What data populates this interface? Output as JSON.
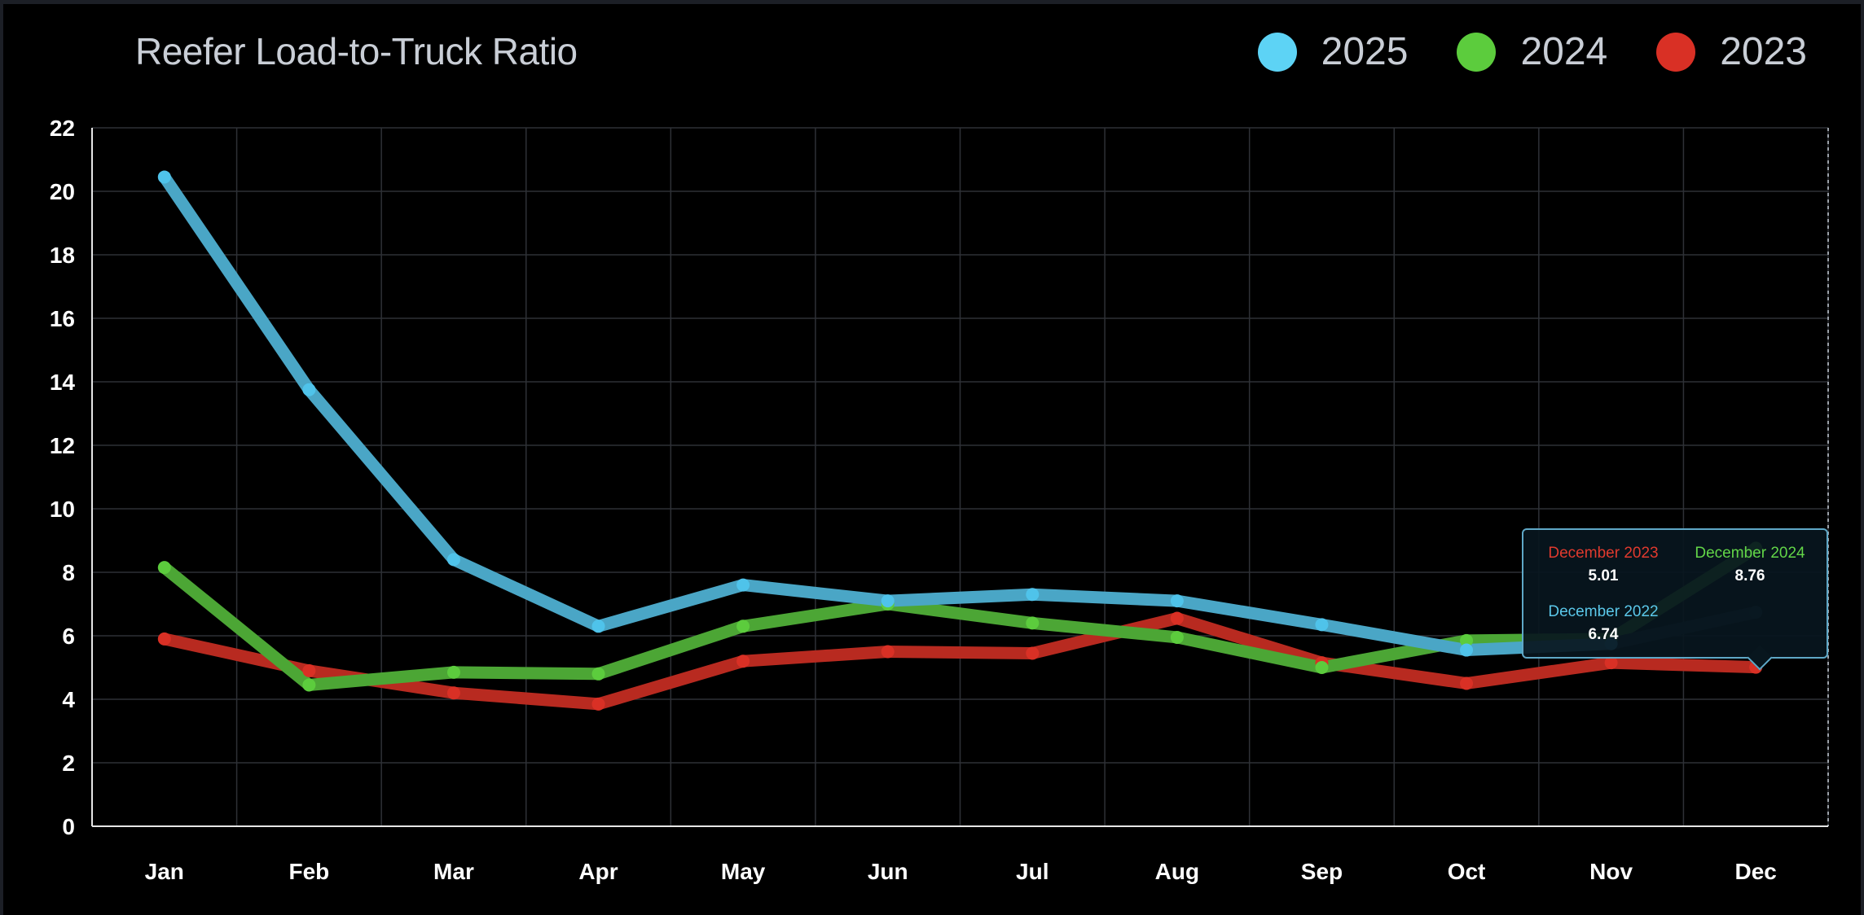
{
  "chart_data": {
    "type": "line",
    "title": "Reefer Load-to-Truck Ratio",
    "xlabel": "",
    "ylabel": "",
    "categories": [
      "Jan",
      "Feb",
      "Mar",
      "Apr",
      "May",
      "Jun",
      "Jul",
      "Aug",
      "Sep",
      "Oct",
      "Nov",
      "Dec"
    ],
    "ylim": [
      0,
      22
    ],
    "yticks": [
      0,
      2,
      4,
      6,
      8,
      10,
      12,
      14,
      16,
      18,
      20,
      22
    ],
    "grid": true,
    "legend_position": "top-right",
    "series": [
      {
        "name": "2023",
        "color": "#d93025",
        "values": [
          5.9,
          4.9,
          4.2,
          3.85,
          5.2,
          5.5,
          5.45,
          6.55,
          5.15,
          4.5,
          5.15,
          5.01
        ]
      },
      {
        "name": "2024",
        "color": "#5ccc3d",
        "values": [
          8.15,
          4.45,
          4.85,
          4.8,
          6.3,
          7.0,
          6.4,
          5.95,
          5.0,
          5.85,
          5.9,
          8.76
        ]
      },
      {
        "name": "2025",
        "color": "#4fc3ea",
        "values": [
          20.45,
          13.75,
          8.4,
          6.3,
          7.6,
          7.1,
          7.3,
          7.1,
          6.35,
          5.55,
          5.75,
          null
        ],
        "trailing_value": 6.74
      }
    ],
    "tooltip": {
      "entries": [
        {
          "label": "December 2023",
          "value": "5.01",
          "color": "#e03a2e"
        },
        {
          "label": "December 2024",
          "value": "8.76",
          "color": "#62d548"
        },
        {
          "label": "December 2022",
          "value": "6.74",
          "color": "#5bc8ea"
        }
      ]
    }
  }
}
